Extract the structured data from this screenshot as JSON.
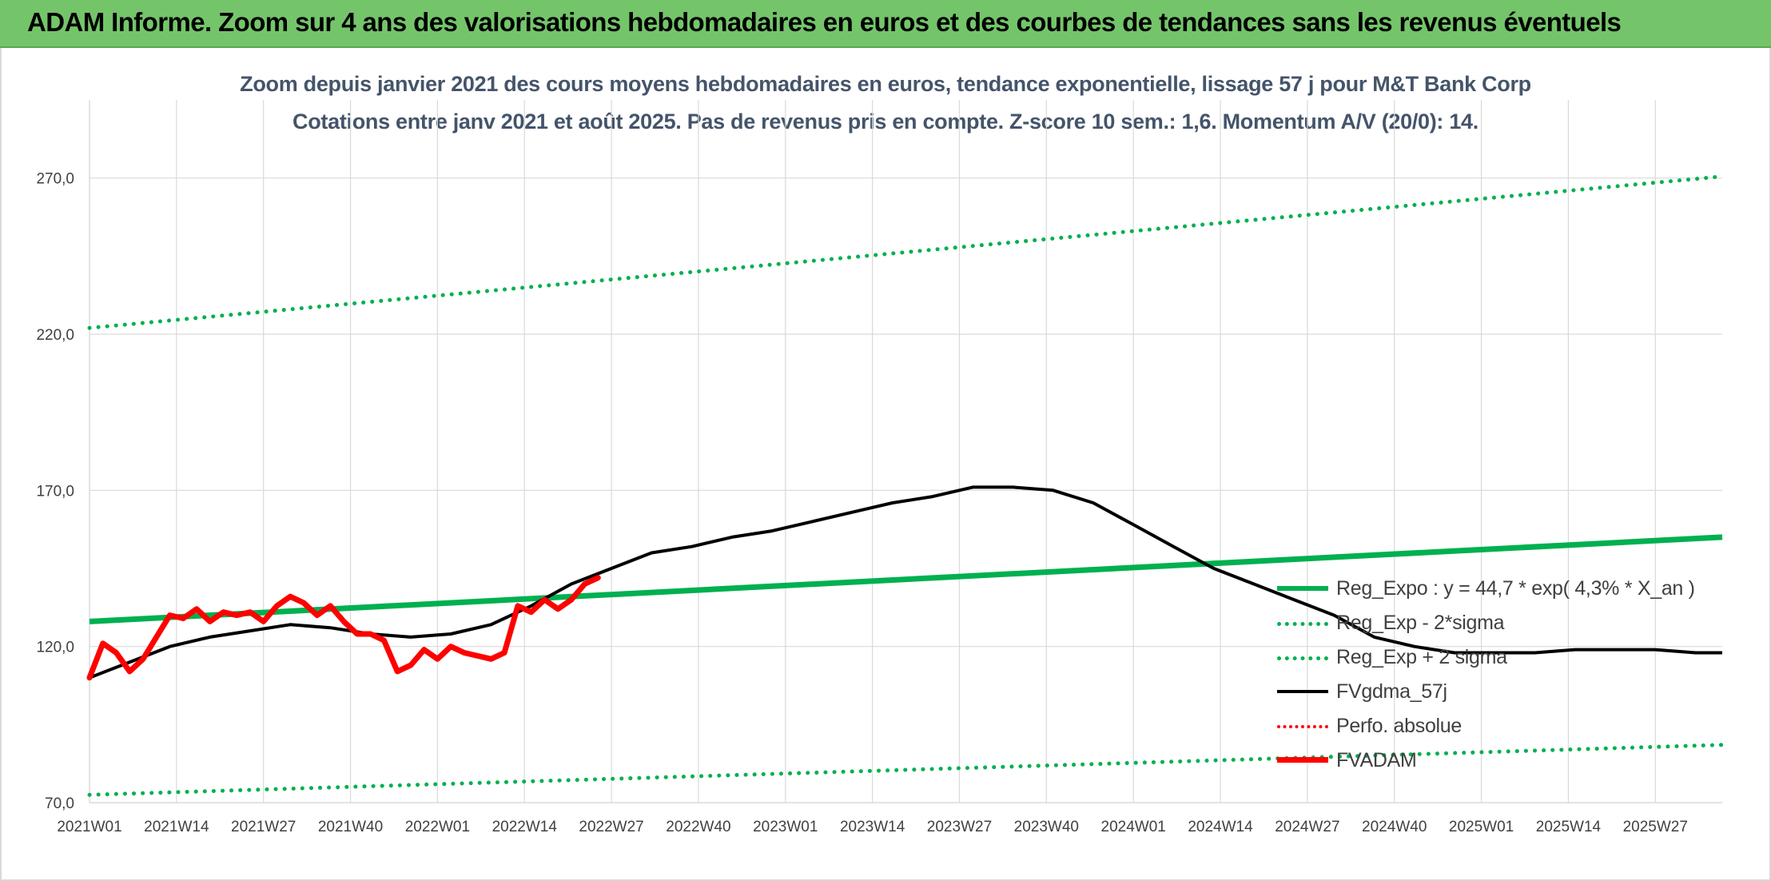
{
  "banner": {
    "title": "ADAM Informe. Zoom sur 4 ans des valorisations hebdomadaires en euros et des courbes de tendances sans les revenus éventuels"
  },
  "colors": {
    "banner": "#74c56a",
    "subtitle": "#44546a",
    "regression": "#00b050",
    "bands": "#00b050",
    "smoothed": "#000000",
    "perfo": "#ff0000",
    "price": "#ff0000",
    "grid": "#d9d9d9"
  },
  "chart_data": {
    "type": "line",
    "title": "Zoom depuis janvier 2021 des cours moyens hebdomadaires en euros, tendance exponentielle, lissage 57 j pour M&T Bank Corp",
    "subtitle": "Cotations entre janv 2021 et août 2025. Pas de revenus pris en compte. Z-score 10 sem.: 1,6. Momentum A/V (20/0): 14.",
    "xlabel": "",
    "ylabel": "",
    "ylim": [
      70,
      295
    ],
    "y_ticks": [
      "70,0",
      "120,0",
      "170,0",
      "220,0",
      "270,0"
    ],
    "y_tick_values": [
      70,
      120,
      170,
      220,
      270
    ],
    "x_ticks": [
      "2021W01",
      "2021W14",
      "2021W27",
      "2021W40",
      "2022W01",
      "2022W14",
      "2022W27",
      "2022W40",
      "2023W01",
      "2023W14",
      "2023W27",
      "2023W40",
      "2024W01",
      "2024W14",
      "2024W27",
      "2024W40",
      "2025W01",
      "2025W14",
      "2025W27"
    ],
    "x_tick_index": [
      0,
      13,
      26,
      39,
      52,
      65,
      78,
      91,
      104,
      117,
      130,
      143,
      156,
      169,
      182,
      195,
      208,
      221,
      234
    ],
    "n_points": 245,
    "grid": true,
    "legend_position": "bottom-right",
    "series": [
      {
        "name": "Reg_Expo : y = 44,7 * exp( 4,3% *  X_an )",
        "style": "solid",
        "points": [
          [
            0,
            128.0
          ],
          [
            244,
            155.0
          ]
        ]
      },
      {
        "name": "Reg_Exp - 2*sigma",
        "style": "dotted",
        "points": [
          [
            0,
            72.5
          ],
          [
            244,
            88.5
          ]
        ]
      },
      {
        "name": "Reg_Exp + 2 sigma",
        "style": "dotted",
        "points": [
          [
            0,
            222.0
          ],
          [
            244,
            270.5
          ]
        ]
      },
      {
        "name": "FVgdma_57j",
        "style": "solid",
        "points": [
          [
            0,
            110
          ],
          [
            6,
            115
          ],
          [
            12,
            120
          ],
          [
            18,
            123
          ],
          [
            24,
            125
          ],
          [
            30,
            127
          ],
          [
            36,
            126
          ],
          [
            42,
            124
          ],
          [
            48,
            123
          ],
          [
            54,
            124
          ],
          [
            60,
            127
          ],
          [
            66,
            133
          ],
          [
            72,
            140
          ],
          [
            78,
            145
          ],
          [
            84,
            150
          ],
          [
            90,
            152
          ],
          [
            96,
            155
          ],
          [
            102,
            157
          ],
          [
            108,
            160
          ],
          [
            114,
            163
          ],
          [
            120,
            166
          ],
          [
            126,
            168
          ],
          [
            132,
            171
          ],
          [
            138,
            171
          ],
          [
            144,
            170
          ],
          [
            150,
            166
          ],
          [
            156,
            159
          ],
          [
            162,
            152
          ],
          [
            168,
            145
          ],
          [
            174,
            140
          ],
          [
            180,
            135
          ],
          [
            186,
            130
          ],
          [
            192,
            123
          ],
          [
            198,
            120
          ],
          [
            204,
            118
          ],
          [
            210,
            118
          ],
          [
            216,
            118
          ],
          [
            222,
            119
          ],
          [
            228,
            119
          ],
          [
            234,
            119
          ],
          [
            240,
            118
          ],
          [
            244,
            118
          ]
        ]
      },
      {
        "name": "Perfo. absolue",
        "style": "dotted",
        "points": []
      },
      {
        "name": "FVADAM",
        "style": "solid",
        "points": [
          [
            0,
            110
          ],
          [
            2,
            121
          ],
          [
            4,
            118
          ],
          [
            6,
            112
          ],
          [
            8,
            116
          ],
          [
            10,
            123
          ],
          [
            12,
            130
          ],
          [
            14,
            129
          ],
          [
            16,
            132
          ],
          [
            18,
            128
          ],
          [
            20,
            131
          ],
          [
            22,
            130
          ],
          [
            24,
            131
          ],
          [
            26,
            128
          ],
          [
            28,
            133
          ],
          [
            30,
            136
          ],
          [
            32,
            134
          ],
          [
            34,
            130
          ],
          [
            36,
            133
          ],
          [
            38,
            128
          ],
          [
            40,
            124
          ],
          [
            42,
            124
          ],
          [
            44,
            122
          ],
          [
            46,
            112
          ],
          [
            48,
            114
          ],
          [
            50,
            119
          ],
          [
            52,
            116
          ],
          [
            54,
            120
          ],
          [
            56,
            118
          ],
          [
            58,
            117
          ],
          [
            60,
            116
          ],
          [
            62,
            118
          ],
          [
            64,
            133
          ],
          [
            66,
            131
          ],
          [
            68,
            135
          ],
          [
            70,
            132
          ],
          [
            72,
            135
          ],
          [
            74,
            140
          ],
          [
            76,
            142
          ]
        ]
      }
    ]
  }
}
